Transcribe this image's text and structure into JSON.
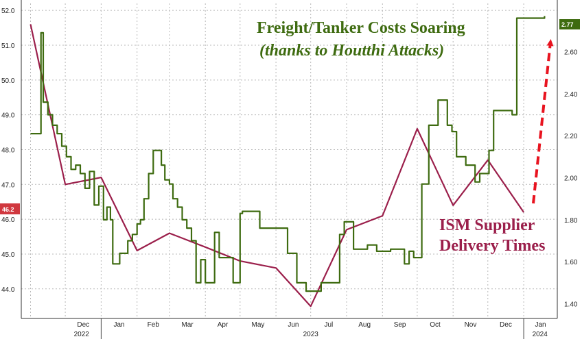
{
  "colors": {
    "freight": "#3e6b10",
    "ism": "#9b1f4b",
    "arrow": "#e8131f",
    "grid": "#b8b8b8",
    "left_badge": "#d0383f",
    "right_badge": "#3e6b10"
  },
  "chart_data": {
    "type": "line",
    "title": "Freight/Tanker Costs Soaring",
    "subtitle": "(thanks to Houtthi Attacks)",
    "grid": true,
    "left_axis": {
      "ticks": [
        "52.0",
        "51.0",
        "50.0",
        "49.0",
        "48.0",
        "47.0",
        "46.0",
        "45.0",
        "44.0"
      ],
      "ylim": [
        43.15,
        52.2
      ]
    },
    "right_axis": {
      "ticks": [
        "2.60",
        "2.40",
        "2.20",
        "2.00",
        "1.80",
        "1.60",
        "1.40"
      ],
      "ylim": [
        1.33,
        2.83
      ]
    },
    "x_months": [
      "Dec",
      "Jan",
      "Feb",
      "Mar",
      "Apr",
      "May",
      "Jun",
      "Jul",
      "Aug",
      "Sep",
      "Oct",
      "Nov",
      "Dec",
      "Jan"
    ],
    "x_years": [
      "2022",
      "2023",
      "2024"
    ],
    "series": [
      {
        "name": "ISM Supplier Delivery Times",
        "axis": "left",
        "x": [
          "2022-11-01",
          "2022-12-01",
          "2023-01-01",
          "2023-02-01",
          "2023-03-01",
          "2023-04-01",
          "2023-05-01",
          "2023-06-01",
          "2023-07-01",
          "2023-08-01",
          "2023-09-01",
          "2023-10-01",
          "2023-11-01",
          "2023-12-01",
          "2024-01-01"
        ],
        "y": [
          51.6,
          47.0,
          47.2,
          45.1,
          45.6,
          45.2,
          44.8,
          44.6,
          43.5,
          45.7,
          46.1,
          48.6,
          46.4,
          47.7,
          46.2
        ]
      },
      {
        "name": "Freight/Tanker Costs",
        "axis": "right",
        "x": [
          "2022-11-01",
          "2022-11-06",
          "2022-11-10",
          "2022-11-12",
          "2022-11-16",
          "2022-11-20",
          "2022-11-24",
          "2022-11-28",
          "2022-12-02",
          "2022-12-06",
          "2022-12-10",
          "2022-12-14",
          "2022-12-18",
          "2022-12-22",
          "2022-12-26",
          "2022-12-30",
          "2023-01-03",
          "2023-01-06",
          "2023-01-09",
          "2023-01-11",
          "2023-01-14",
          "2023-01-17",
          "2023-01-20",
          "2023-01-24",
          "2023-01-28",
          "2023-02-01",
          "2023-02-04",
          "2023-02-07",
          "2023-02-11",
          "2023-02-15",
          "2023-02-19",
          "2023-02-22",
          "2023-02-25",
          "2023-03-01",
          "2023-03-04",
          "2023-03-08",
          "2023-03-12",
          "2023-03-16",
          "2023-03-20",
          "2023-03-24",
          "2023-03-28",
          "2023-04-01",
          "2023-04-05",
          "2023-04-09",
          "2023-04-13",
          "2023-04-17",
          "2023-04-21",
          "2023-04-25",
          "2023-04-28",
          "2023-05-01",
          "2023-05-03",
          "2023-05-05",
          "2023-05-07",
          "2023-05-09",
          "2023-05-11",
          "2023-05-14",
          "2023-05-18",
          "2023-05-22",
          "2023-05-26",
          "2023-05-30",
          "2023-06-03",
          "2023-06-07",
          "2023-06-11",
          "2023-06-15",
          "2023-06-19",
          "2023-06-23",
          "2023-06-27",
          "2023-07-01",
          "2023-07-04",
          "2023-07-07",
          "2023-07-10",
          "2023-07-14",
          "2023-07-18",
          "2023-07-22",
          "2023-07-26",
          "2023-07-30",
          "2023-08-03",
          "2023-08-07",
          "2023-08-11",
          "2023-08-15",
          "2023-08-19",
          "2023-08-23",
          "2023-08-27",
          "2023-08-31",
          "2023-09-04",
          "2023-09-08",
          "2023-09-12",
          "2023-09-16",
          "2023-09-20",
          "2023-09-24",
          "2023-09-28",
          "2023-10-02",
          "2023-10-05",
          "2023-10-08",
          "2023-10-11",
          "2023-10-15",
          "2023-10-19",
          "2023-10-23",
          "2023-10-27",
          "2023-10-31",
          "2023-11-04",
          "2023-11-08",
          "2023-11-12",
          "2023-11-16",
          "2023-11-20",
          "2023-11-24",
          "2023-11-28",
          "2023-12-02",
          "2023-12-06",
          "2023-12-10",
          "2023-12-14",
          "2023-12-18",
          "2023-12-22",
          "2023-12-26",
          "2023-12-30",
          "2024-01-03",
          "2024-01-07",
          "2024-01-11",
          "2024-01-15",
          "2024-01-19"
        ],
        "y": [
          2.21,
          2.21,
          2.69,
          2.36,
          2.3,
          2.25,
          2.21,
          2.15,
          2.1,
          2.04,
          2.06,
          2.02,
          1.95,
          2.03,
          1.87,
          1.96,
          1.8,
          1.86,
          1.8,
          1.59,
          1.59,
          1.64,
          1.64,
          1.7,
          1.73,
          1.78,
          1.8,
          1.9,
          2.02,
          2.13,
          2.13,
          2.06,
          1.99,
          1.97,
          1.9,
          1.86,
          1.8,
          1.76,
          1.7,
          1.5,
          1.61,
          1.5,
          1.5,
          1.74,
          1.62,
          1.62,
          1.62,
          1.5,
          1.5,
          1.83,
          1.84,
          1.84,
          1.84,
          1.84,
          1.84,
          1.84,
          1.76,
          1.76,
          1.76,
          1.76,
          1.76,
          1.76,
          1.64,
          1.64,
          1.5,
          1.5,
          1.46,
          1.46,
          1.46,
          1.46,
          1.5,
          1.5,
          1.5,
          1.5,
          1.73,
          1.79,
          1.79,
          1.66,
          1.66,
          1.66,
          1.68,
          1.68,
          1.65,
          1.65,
          1.65,
          1.66,
          1.66,
          1.66,
          1.59,
          1.65,
          1.62,
          1.62,
          1.97,
          1.97,
          2.25,
          2.25,
          2.37,
          2.37,
          2.25,
          2.22,
          2.1,
          2.1,
          2.06,
          2.06,
          1.98,
          2.02,
          2.02,
          2.13,
          2.32,
          2.32,
          2.32,
          2.32,
          2.3,
          2.76,
          2.76,
          2.76,
          2.76,
          2.76,
          2.76,
          2.77
        ]
      }
    ],
    "annotations": {
      "left_badge": "46.2",
      "right_badge": "2.77",
      "ism_label_line1": "ISM Supplier",
      "ism_label_line2": "Delivery Times"
    }
  }
}
